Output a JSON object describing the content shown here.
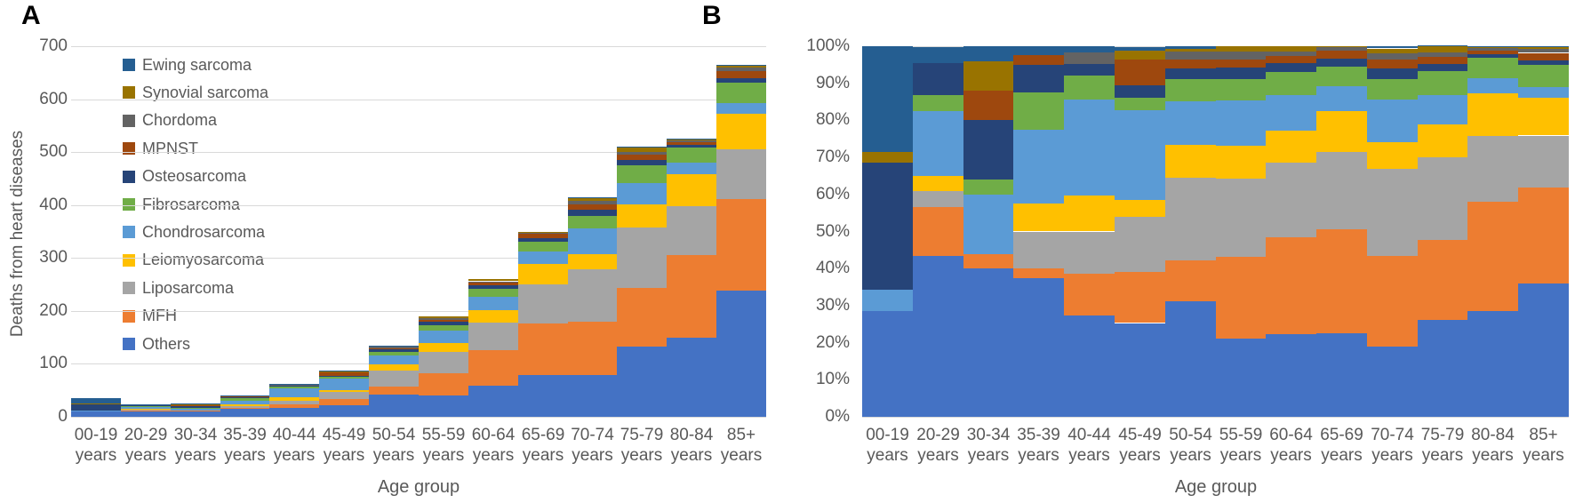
{
  "figure_title": "",
  "style": {
    "gridline_color": "#D9D9D9",
    "axis_line_color": "#D9D9D9",
    "tick_text_color": "#595959",
    "axis_title_color": "#595959",
    "legend_text_color": "#595959",
    "panel_letter_color": "#000000",
    "background_color": "#FFFFFF"
  },
  "legend": {
    "position": "upper-left-inside-panel-A",
    "items": [
      {
        "label": "Ewing sarcoma",
        "color": "#255E91"
      },
      {
        "label": "Synovial sarcoma",
        "color": "#997300"
      },
      {
        "label": "Chordoma",
        "color": "#636363"
      },
      {
        "label": "MPNST",
        "color": "#9E480E"
      },
      {
        "label": "Osteosarcoma",
        "color": "#264478"
      },
      {
        "label": "Fibrosarcoma",
        "color": "#70AD47"
      },
      {
        "label": "Chondrosarcoma",
        "color": "#5B9BD5"
      },
      {
        "label": "Leiomyosarcoma",
        "color": "#FFC000"
      },
      {
        "label": "Liposarcoma",
        "color": "#A5A5A5"
      },
      {
        "label": "MFH",
        "color": "#ED7D31"
      },
      {
        "label": "Others",
        "color": "#4472C4"
      }
    ]
  },
  "chart_data": [
    {
      "type": "bar",
      "stacked": true,
      "percent": false,
      "panel_label": "A",
      "title": "",
      "xlabel": "Age group",
      "ylabel": "Deaths from heart diseases",
      "ylim": [
        0,
        700
      ],
      "ytick_step": 100,
      "grid": "horizontal",
      "legend_visible": true,
      "categories": [
        "00-19 years",
        "20-29 years",
        "30-34 years",
        "35-39 years",
        "40-44 years",
        "45-49 years",
        "50-54 years",
        "55-59 years",
        "60-64 years",
        "65-69 years",
        "70-74 years",
        "75-79 years",
        "80-84 years",
        "85+ years"
      ],
      "bar_totals": [
        35,
        23,
        25,
        40,
        62,
        87,
        135,
        190,
        260,
        350,
        415,
        510,
        525,
        665
      ],
      "series": [
        {
          "name": "Others",
          "color": "#4472C4",
          "values": [
            10,
            10,
            10,
            15,
            17,
            22,
            42,
            40,
            58,
            79,
            79,
            133,
            150,
            239
          ]
        },
        {
          "name": "MFH",
          "color": "#ED7D31",
          "values": [
            0,
            3,
            1,
            1,
            7,
            12,
            15,
            42,
            68,
            98,
            101,
            110,
            155,
            173
          ]
        },
        {
          "name": "Liposarcoma",
          "color": "#A5A5A5",
          "values": [
            0,
            1,
            0,
            4,
            7,
            13,
            30,
            40,
            52,
            73,
            98,
            114,
            93,
            93
          ]
        },
        {
          "name": "Leiomyosarcoma",
          "color": "#FFC000",
          "values": [
            0,
            1,
            0,
            3,
            6,
            4,
            12,
            17,
            23,
            38,
            30,
            45,
            61,
            67
          ]
        },
        {
          "name": "Chondrosarcoma",
          "color": "#5B9BD5",
          "values": [
            2,
            4,
            4,
            8,
            16,
            21,
            16,
            23,
            25,
            24,
            48,
            40,
            21,
            20
          ]
        },
        {
          "name": "Fibrosarcoma",
          "color": "#70AD47",
          "values": [
            0,
            1,
            1,
            4,
            4,
            3,
            8,
            11,
            16,
            18,
            23,
            33,
            29,
            40
          ]
        },
        {
          "name": "Osteosarcoma",
          "color": "#264478",
          "values": [
            12,
            2,
            4,
            3,
            2,
            3,
            4,
            6,
            6,
            8,
            12,
            10,
            5,
            8
          ]
        },
        {
          "name": "MPNST",
          "color": "#9E480E",
          "values": [
            0,
            0,
            2,
            1,
            0,
            6,
            3,
            4,
            5,
            7,
            10,
            10,
            5,
            13
          ]
        },
        {
          "name": "Chordoma",
          "color": "#636363",
          "values": [
            0,
            0,
            0,
            0,
            2,
            0,
            3,
            4,
            3,
            4,
            7,
            6,
            3,
            7
          ]
        },
        {
          "name": "Synovial sarcoma",
          "color": "#997300",
          "values": [
            1,
            0,
            2,
            0,
            0,
            2,
            1,
            3,
            4,
            1,
            5,
            8,
            2,
            3
          ]
        },
        {
          "name": "Ewing sarcoma",
          "color": "#255E91",
          "values": [
            10,
            1,
            1,
            1,
            1,
            1,
            1,
            0,
            0,
            0,
            2,
            1,
            1,
            2
          ]
        }
      ]
    },
    {
      "type": "bar",
      "stacked": true,
      "percent": true,
      "panel_label": "B",
      "title": "",
      "xlabel": "Age group",
      "ylabel": "",
      "ylim": [
        0,
        100
      ],
      "ytick_step": 10,
      "ytick_suffix": "%",
      "grid": "horizontal",
      "legend_visible": false,
      "categories": [
        "00-19 years",
        "20-29 years",
        "30-34 years",
        "35-39 years",
        "40-44 years",
        "45-49 years",
        "50-54 years",
        "55-59 years",
        "60-64 years",
        "65-69 years",
        "70-74 years",
        "75-79 years",
        "80-84 years",
        "85+ years"
      ],
      "series": [
        {
          "name": "Others",
          "color": "#4472C4",
          "values": [
            28.6,
            43.5,
            40.0,
            37.5,
            27.4,
            25.3,
            31.1,
            21.1,
            22.3,
            22.6,
            19.0,
            26.1,
            28.6,
            35.9
          ]
        },
        {
          "name": "MFH",
          "color": "#ED7D31",
          "values": [
            0,
            13.0,
            4.0,
            2.5,
            11.3,
            13.8,
            11.1,
            22.1,
            26.2,
            28.0,
            24.3,
            21.6,
            29.5,
            26.0
          ]
        },
        {
          "name": "Liposarcoma",
          "color": "#A5A5A5",
          "values": [
            0,
            4.3,
            0,
            10.0,
            11.3,
            14.9,
            22.2,
            21.1,
            20.0,
            20.9,
            23.6,
            22.4,
            17.7,
            14.0
          ]
        },
        {
          "name": "Leiomyosarcoma",
          "color": "#FFC000",
          "values": [
            0,
            4.3,
            0,
            7.5,
            9.7,
            4.6,
            8.9,
            8.9,
            8.8,
            10.9,
            7.2,
            8.8,
            11.6,
            10.1
          ]
        },
        {
          "name": "Chondrosarcoma",
          "color": "#5B9BD5",
          "values": [
            5.7,
            17.4,
            16.0,
            20.0,
            25.8,
            24.1,
            11.9,
            12.1,
            9.6,
            6.9,
            11.6,
            7.8,
            4.0,
            3.0
          ]
        },
        {
          "name": "Fibrosarcoma",
          "color": "#70AD47",
          "values": [
            0,
            4.3,
            4.0,
            10.0,
            6.5,
            3.4,
            5.9,
            5.8,
            6.2,
            5.1,
            5.5,
            6.5,
            5.5,
            6.0
          ]
        },
        {
          "name": "Osteosarcoma",
          "color": "#264478",
          "values": [
            34.3,
            8.7,
            16.0,
            7.5,
            3.2,
            3.4,
            3.0,
            3.2,
            2.3,
            2.3,
            2.9,
            2.0,
            1.0,
            1.2
          ]
        },
        {
          "name": "MPNST",
          "color": "#9E480E",
          "values": [
            0,
            0,
            8.0,
            2.5,
            0,
            6.9,
            2.2,
            2.1,
            1.9,
            2.0,
            2.4,
            2.0,
            1.0,
            2.0
          ]
        },
        {
          "name": "Chordoma",
          "color": "#636363",
          "values": [
            0,
            0,
            0,
            0,
            3.2,
            0,
            2.2,
            2.1,
            1.2,
            1.1,
            1.7,
            1.2,
            0.6,
            1.1
          ]
        },
        {
          "name": "Synovial sarcoma",
          "color": "#997300",
          "values": [
            2.9,
            0,
            8.0,
            0,
            0,
            2.3,
            0.7,
            1.6,
            1.5,
            0.3,
            1.2,
            1.6,
            0.4,
            0.5
          ]
        },
        {
          "name": "Ewing sarcoma",
          "color": "#255E91",
          "values": [
            28.6,
            4.3,
            4.0,
            2.5,
            1.6,
            1.1,
            0.7,
            0,
            0,
            0,
            0.5,
            0.2,
            0.2,
            0.3
          ]
        }
      ]
    }
  ]
}
